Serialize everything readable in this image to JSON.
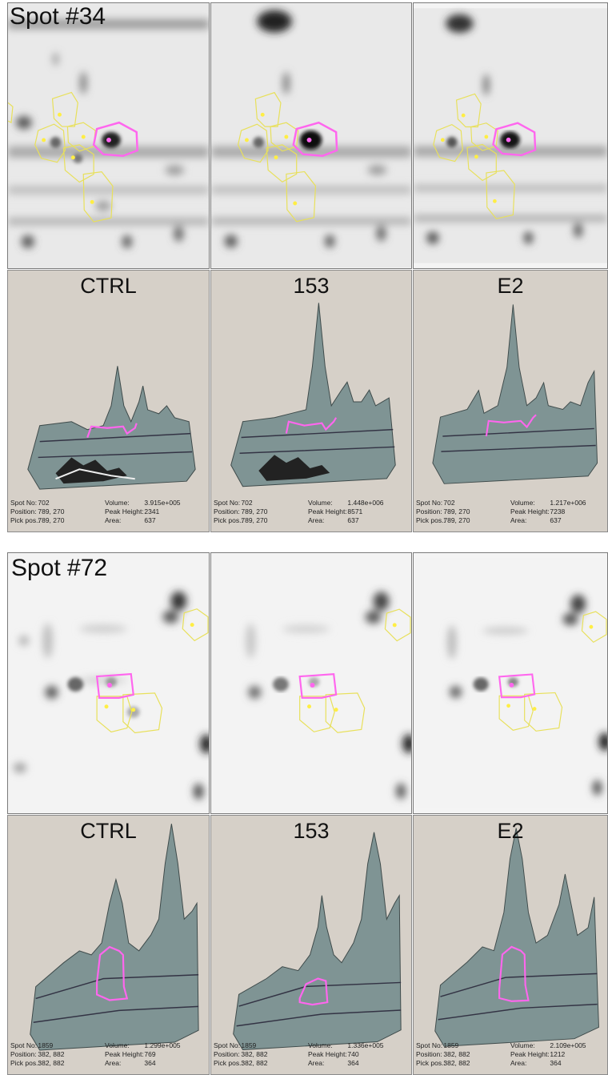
{
  "colors": {
    "selected_outline": "#ff66ee",
    "neighbor_outline": "#e8e05a",
    "surface": "#7f9494",
    "panel_bg": "#d6d0c8"
  },
  "figures": [
    {
      "spot_label": "Spot #34",
      "conditions": [
        {
          "name": "CTRL",
          "spot_no": "702",
          "position": "789, 270",
          "pick_pos": "789, 270",
          "volume": "3.915e+005",
          "peak_height": "2341",
          "area": "637"
        },
        {
          "name": "153",
          "spot_no": "702",
          "position": "789, 270",
          "pick_pos": "789, 270",
          "volume": "1.448e+006",
          "peak_height": "8571",
          "area": "637"
        },
        {
          "name": "E2",
          "spot_no": "702",
          "position": "789, 270",
          "pick_pos": "789, 270",
          "volume": "1.217e+006",
          "peak_height": "7238",
          "area": "637"
        }
      ]
    },
    {
      "spot_label": "Spot #72",
      "conditions": [
        {
          "name": "CTRL",
          "spot_no": "1859",
          "position": "382, 882",
          "pick_pos": "382, 882",
          "volume": "1.299e+005",
          "peak_height": "769",
          "area": "364"
        },
        {
          "name": "153",
          "spot_no": "1859",
          "position": "382, 882",
          "pick_pos": "382, 882",
          "volume": "1.336e+005",
          "peak_height": "740",
          "area": "364"
        },
        {
          "name": "E2",
          "spot_no": "1859",
          "position": "382, 882",
          "pick_pos": "382, 882",
          "volume": "2.109e+005",
          "peak_height": "1212",
          "area": "364"
        }
      ]
    }
  ],
  "labels": {
    "spot_no": "Spot No:",
    "position": "Position:",
    "pick_pos": "Pick pos.:",
    "volume": "Volume:",
    "peak_height": "Peak Height:",
    "area": "Area:"
  }
}
